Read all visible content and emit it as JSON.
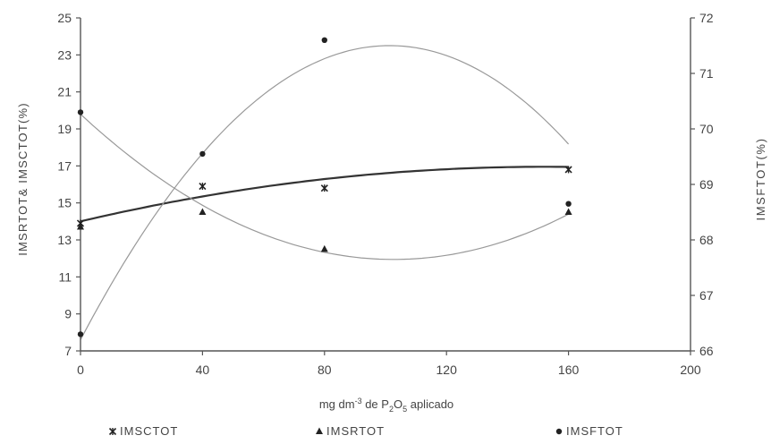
{
  "chart_data": {
    "type": "scatter",
    "xlabel": "mg dm",
    "xlabel_sup": "-3",
    "xlabel_mid": " de P",
    "xlabel_sub1": "2",
    "xlabel_o": "O",
    "xlabel_sub2": "5",
    "xlabel_end": " aplicado",
    "ylabel_left": "IMSRTOT& IMSCTOT(%)",
    "ylabel_right": "IMSFTOT(%)",
    "xlim": [
      0,
      200
    ],
    "ylim_left": [
      7,
      25
    ],
    "ylim_right": [
      66,
      72
    ],
    "x_ticks": [
      "0",
      "40",
      "80",
      "120",
      "160",
      "200"
    ],
    "y_left_ticks": [
      "7",
      "9",
      "11",
      "13",
      "15",
      "17",
      "19",
      "21",
      "23",
      "25"
    ],
    "y_right_ticks": [
      "66",
      "67",
      "68",
      "69",
      "70",
      "71",
      "72"
    ],
    "series": [
      {
        "name": "IMSCTOT",
        "marker": "x-star",
        "axis": "left",
        "color": "#222222",
        "line_color": "#333333",
        "line_width": 2.2,
        "points": [
          [
            0,
            13.9
          ],
          [
            40,
            15.9
          ],
          [
            80,
            15.8
          ],
          [
            160,
            16.8
          ]
        ],
        "fit": [
          14.0,
          0.0388,
          -0.0001275
        ]
      },
      {
        "name": "IMSRTOT",
        "marker": "triangle",
        "axis": "left",
        "color": "#222222",
        "line_color": "#999999",
        "line_width": 1.2,
        "points": [
          [
            0,
            13.7
          ],
          [
            40,
            14.5
          ],
          [
            80,
            12.5
          ],
          [
            160,
            14.5
          ]
        ],
        "fit": [
          19.8,
          -0.153,
          0.000745
        ]
      },
      {
        "name": "IMSFTOT",
        "marker": "dot",
        "axis": "right",
        "color": "#222222",
        "line_color": "#999999",
        "line_width": 1.2,
        "points": [
          [
            0,
            70.3
          ],
          [
            0,
            66.3
          ],
          [
            40,
            69.55
          ],
          [
            80,
            71.6
          ],
          [
            160,
            68.65
          ]
        ],
        "fit": [
          66.2,
          0.1046,
          -0.000516
        ]
      }
    ],
    "legend": [
      {
        "label": "IMSCTOT",
        "marker": "x-star"
      },
      {
        "label": "IMSRTOT",
        "marker": "triangle"
      },
      {
        "label": "IMSFTOT",
        "marker": "dot"
      }
    ],
    "legend_position": "bottom",
    "grid": false
  }
}
